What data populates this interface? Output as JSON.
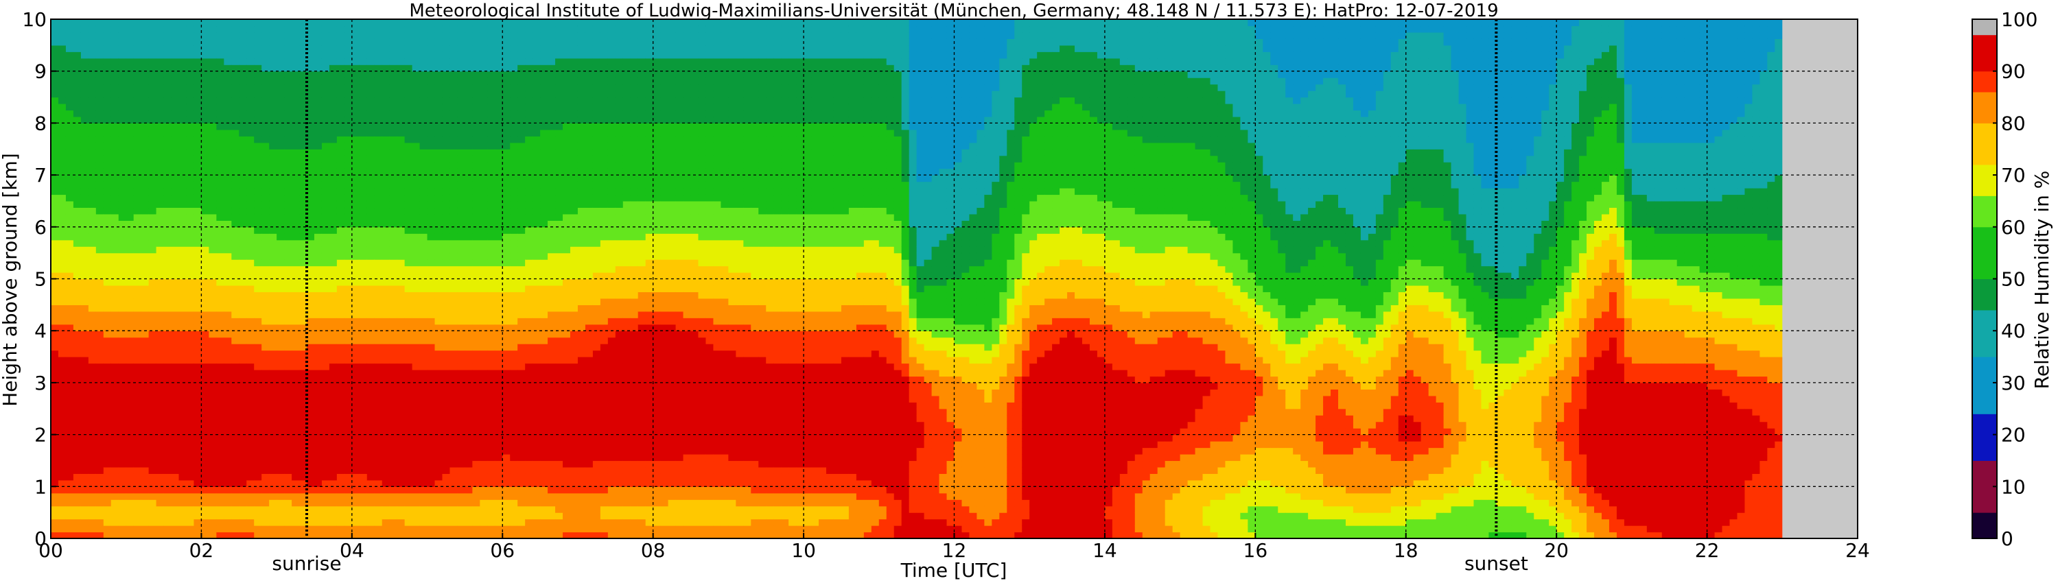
{
  "chart_data": {
    "type": "heatmap",
    "title": "Meteorological Institute of Ludwig-Maximilians-Universität (München, Germany; 48.148 N / 11.573 E):    HatPro: 12-07-2019",
    "xlabel": "Time [UTC]",
    "ylabel": "Height above ground [km]",
    "xlim": [
      0,
      24
    ],
    "ylim": [
      0,
      10
    ],
    "xticks": [
      "00",
      "02",
      "04",
      "06",
      "08",
      "10",
      "12",
      "14",
      "16",
      "18",
      "20",
      "22",
      "24"
    ],
    "yticks": [
      "0",
      "1",
      "2",
      "3",
      "4",
      "5",
      "6",
      "7",
      "8",
      "9",
      "10"
    ],
    "grid": true,
    "data_end_time": 23,
    "no_data_color": "#c8c8c8",
    "markers": [
      {
        "label": "sunrise",
        "time": 3.4
      },
      {
        "label": "sunset",
        "time": 19.2
      }
    ],
    "colorbar": {
      "label": "Relative Humidity in %",
      "ticks": [
        "0",
        "10",
        "20",
        "30",
        "40",
        "50",
        "60",
        "70",
        "80",
        "90",
        "100"
      ],
      "stops": [
        {
          "from": 0,
          "to": 5,
          "color": "#140030"
        },
        {
          "from": 5,
          "to": 15,
          "color": "#8a0a3a"
        },
        {
          "from": 15,
          "to": 24,
          "color": "#0a14c0"
        },
        {
          "from": 24,
          "to": 35,
          "color": "#0a96c8"
        },
        {
          "from": 35,
          "to": 44,
          "color": "#12a8a8"
        },
        {
          "from": 44,
          "to": 50,
          "color": "#0a9a3a"
        },
        {
          "from": 50,
          "to": 60,
          "color": "#18c018"
        },
        {
          "from": 60,
          "to": 66,
          "color": "#64e61e"
        },
        {
          "from": 66,
          "to": 72,
          "color": "#e6f000"
        },
        {
          "from": 72,
          "to": 80,
          "color": "#ffc800"
        },
        {
          "from": 80,
          "to": 86,
          "color": "#ff8c00"
        },
        {
          "from": 86,
          "to": 90,
          "color": "#ff3200"
        },
        {
          "from": 90,
          "to": 97,
          "color": "#dc0000"
        },
        {
          "from": 97,
          "to": 100,
          "color": "#b4b4b4"
        }
      ]
    },
    "humidity_time_grid": [
      0,
      0.5,
      1,
      1.5,
      2,
      2.5,
      3,
      3.5,
      4,
      4.5,
      5,
      5.5,
      6,
      6.5,
      7,
      7.5,
      8,
      8.5,
      9,
      9.5,
      10,
      10.5,
      11,
      11.3,
      11.5,
      12,
      12.5,
      13,
      13.5,
      14,
      14.5,
      15,
      15.5,
      16,
      16.5,
      17,
      17.5,
      18,
      18.5,
      19,
      19.5,
      20,
      20.5,
      20.8,
      21,
      21.5,
      22,
      22.5,
      23
    ],
    "humidity_profiles": [
      {
        "key": "h0",
        "height": 0,
        "rh": [
          88,
          88,
          87,
          86,
          87,
          88,
          87,
          86,
          86,
          87,
          86,
          85,
          84,
          86,
          88,
          87,
          86,
          85,
          84,
          85,
          84,
          85,
          88,
          92,
          94,
          92,
          88,
          92,
          94,
          92,
          86,
          80,
          72,
          66,
          62,
          60,
          60,
          59,
          61,
          60,
          58,
          62,
          80,
          86,
          88,
          90,
          90,
          88,
          88
        ]
      },
      {
        "key": "h0.5",
        "height": 0.5,
        "rh": [
          76,
          76,
          74,
          75,
          76,
          76,
          74,
          75,
          75,
          76,
          76,
          76,
          75,
          78,
          80,
          78,
          76,
          76,
          76,
          78,
          77,
          78,
          84,
          90,
          90,
          88,
          84,
          90,
          93,
          90,
          84,
          76,
          68,
          64,
          66,
          68,
          72,
          70,
          66,
          62,
          64,
          70,
          85,
          90,
          92,
          92,
          92,
          90,
          88
        ]
      },
      {
        "key": "h1",
        "height": 1,
        "rh": [
          90,
          89,
          88,
          89,
          90,
          90,
          89,
          90,
          89,
          90,
          90,
          88,
          86,
          87,
          88,
          87,
          87,
          86,
          86,
          88,
          88,
          89,
          90,
          91,
          88,
          84,
          80,
          92,
          94,
          92,
          86,
          80,
          76,
          70,
          74,
          80,
          84,
          80,
          76,
          70,
          72,
          80,
          92,
          93,
          92,
          92,
          92,
          90,
          88
        ]
      },
      {
        "key": "h2",
        "height": 2,
        "rh": [
          93,
          93,
          93,
          93,
          93,
          93,
          93,
          93,
          93,
          93,
          93,
          93,
          93,
          93,
          93,
          93,
          93,
          93,
          93,
          93,
          93,
          93,
          93,
          93,
          91,
          87,
          82,
          93,
          94,
          93,
          92,
          90,
          88,
          84,
          82,
          90,
          86,
          92,
          88,
          74,
          76,
          86,
          93,
          93,
          93,
          93,
          93,
          92,
          90
        ]
      },
      {
        "key": "h3",
        "height": 3,
        "rh": [
          93,
          93,
          93,
          93,
          93,
          93,
          93,
          93,
          93,
          93,
          93,
          93,
          93,
          93,
          93,
          93,
          93,
          93,
          93,
          93,
          93,
          93,
          93,
          92,
          88,
          82,
          78,
          92,
          94,
          92,
          90,
          92,
          90,
          88,
          76,
          86,
          78,
          88,
          84,
          70,
          72,
          82,
          92,
          92,
          90,
          90,
          90,
          88,
          86
        ]
      },
      {
        "key": "h4",
        "height": 4,
        "rh": [
          88,
          86,
          85,
          86,
          86,
          84,
          82,
          83,
          84,
          84,
          83,
          82,
          82,
          84,
          86,
          90,
          92,
          90,
          88,
          86,
          86,
          86,
          88,
          84,
          66,
          62,
          60,
          86,
          90,
          88,
          84,
          86,
          84,
          76,
          62,
          70,
          62,
          80,
          78,
          60,
          58,
          70,
          88,
          90,
          80,
          80,
          78,
          76,
          72
        ]
      },
      {
        "key": "h5",
        "height": 5,
        "rh": [
          74,
          72,
          70,
          72,
          72,
          70,
          68,
          68,
          70,
          70,
          68,
          68,
          68,
          70,
          72,
          74,
          76,
          76,
          74,
          72,
          72,
          72,
          74,
          70,
          46,
          50,
          52,
          72,
          76,
          74,
          70,
          72,
          70,
          60,
          50,
          56,
          48,
          64,
          62,
          46,
          44,
          56,
          78,
          86,
          66,
          66,
          62,
          60,
          58
        ]
      },
      {
        "key": "h6",
        "height": 6,
        "rh": [
          64,
          62,
          61,
          62,
          62,
          60,
          58,
          58,
          60,
          60,
          58,
          58,
          58,
          60,
          62,
          63,
          64,
          64,
          63,
          62,
          62,
          62,
          63,
          60,
          38,
          44,
          48,
          64,
          66,
          64,
          62,
          62,
          60,
          52,
          44,
          48,
          42,
          54,
          52,
          38,
          38,
          48,
          66,
          72,
          50,
          48,
          48,
          48,
          48
        ]
      },
      {
        "key": "h7",
        "height": 7,
        "rh": [
          58,
          56,
          55,
          56,
          56,
          54,
          52,
          52,
          54,
          54,
          52,
          52,
          52,
          54,
          56,
          56,
          56,
          56,
          56,
          55,
          55,
          55,
          56,
          54,
          34,
          36,
          42,
          56,
          58,
          56,
          54,
          54,
          52,
          46,
          40,
          42,
          38,
          46,
          46,
          34,
          34,
          42,
          56,
          60,
          40,
          40,
          40,
          42,
          44
        ]
      },
      {
        "key": "h8",
        "height": 8,
        "rh": [
          52,
          50,
          50,
          50,
          50,
          49,
          48,
          48,
          49,
          49,
          48,
          48,
          48,
          49,
          50,
          50,
          50,
          50,
          50,
          50,
          50,
          50,
          50,
          48,
          30,
          30,
          36,
          50,
          52,
          50,
          48,
          48,
          47,
          42,
          36,
          38,
          35,
          42,
          42,
          30,
          30,
          38,
          50,
          52,
          32,
          32,
          32,
          36,
          42
        ]
      },
      {
        "key": "h9",
        "height": 9,
        "rh": [
          48,
          46,
          46,
          46,
          46,
          45,
          44,
          44,
          45,
          45,
          44,
          44,
          44,
          45,
          46,
          46,
          46,
          46,
          46,
          46,
          46,
          46,
          46,
          44,
          28,
          28,
          32,
          46,
          48,
          46,
          44,
          44,
          43,
          38,
          33,
          35,
          32,
          38,
          38,
          28,
          28,
          35,
          46,
          48,
          30,
          30,
          30,
          32,
          38
        ]
      },
      {
        "key": "h10",
        "height": 10,
        "rh": [
          40,
          39,
          39,
          39,
          39,
          38,
          38,
          38,
          38,
          38,
          38,
          38,
          38,
          38,
          39,
          39,
          39,
          39,
          39,
          39,
          39,
          39,
          39,
          38,
          26,
          26,
          28,
          38,
          40,
          38,
          38,
          38,
          37,
          34,
          30,
          32,
          30,
          34,
          34,
          26,
          26,
          30,
          38,
          40,
          28,
          28,
          28,
          30,
          34
        ]
      }
    ]
  }
}
